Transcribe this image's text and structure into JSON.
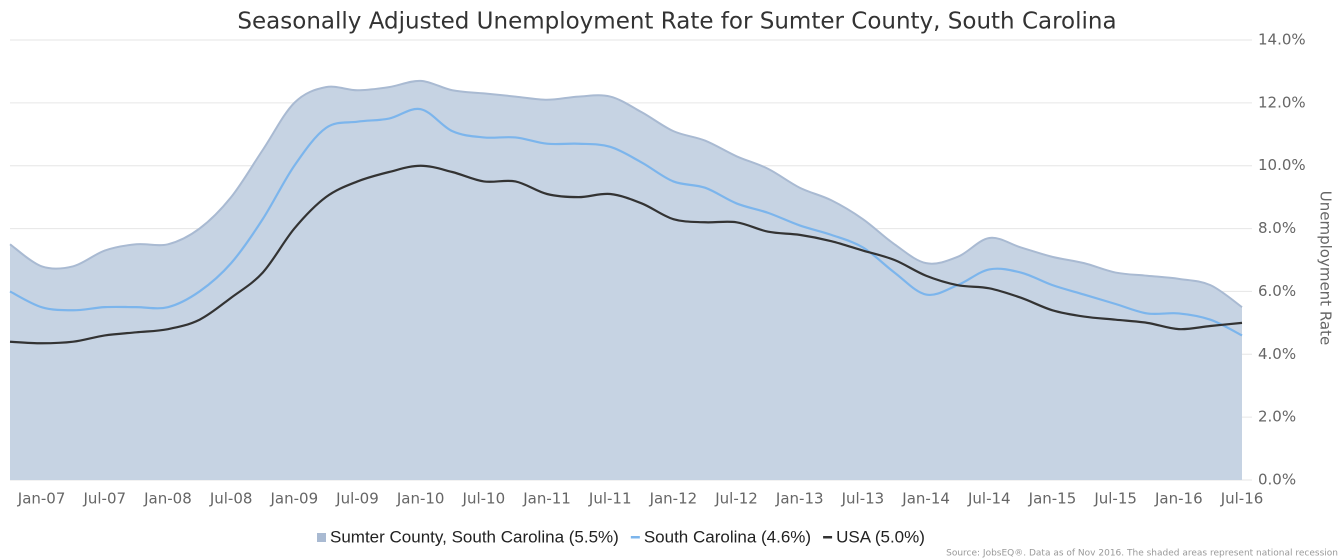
{
  "chart_data": {
    "type": "line",
    "title": "Seasonally Adjusted Unemployment Rate for Sumter County, South Carolina",
    "y_axis_label": "Unemployment Rate",
    "note": "Source: JobsEQ®. Data as of Nov 2016. The shaded areas represent national recession",
    "categories": [
      null,
      "Jan-07",
      null,
      "Jul-07",
      null,
      "Jan-08",
      null,
      "Jul-08",
      null,
      "Jan-09",
      null,
      "Jul-09",
      null,
      "Jan-10",
      null,
      "Jul-10",
      null,
      "Jan-11",
      null,
      "Jul-11",
      null,
      "Jan-12",
      null,
      "Jul-12",
      null,
      "Jan-13",
      null,
      "Jul-13",
      null,
      "Jan-14",
      null,
      "Jul-14",
      null,
      "Jan-15",
      null,
      "Jul-15",
      null,
      "Jan-16",
      null,
      "Jul-16"
    ],
    "series": [
      {
        "name": "Sumter County, South Carolina (5.5%)",
        "kind": "area",
        "color": "#c6d3e3",
        "values": [
          7.5,
          6.8,
          6.8,
          7.3,
          7.5,
          7.5,
          8.0,
          9.0,
          10.5,
          12.0,
          12.5,
          12.4,
          12.5,
          12.7,
          12.4,
          12.3,
          12.2,
          12.1,
          12.2,
          12.2,
          11.7,
          11.1,
          10.8,
          10.3,
          9.9,
          9.3,
          8.9,
          8.3,
          7.5,
          6.9,
          7.1,
          7.7,
          7.4,
          7.1,
          6.9,
          6.6,
          6.5,
          6.4,
          6.2,
          5.5
        ]
      },
      {
        "name": "South Carolina (4.6%)",
        "kind": "line",
        "color": "#7cb5ec",
        "values": [
          6.0,
          5.5,
          5.4,
          5.5,
          5.5,
          5.5,
          6.0,
          6.9,
          8.3,
          10.0,
          11.2,
          11.4,
          11.5,
          11.8,
          11.1,
          10.9,
          10.9,
          10.7,
          10.7,
          10.6,
          10.1,
          9.5,
          9.3,
          8.8,
          8.5,
          8.1,
          7.8,
          7.4,
          6.6,
          5.9,
          6.2,
          6.7,
          6.6,
          6.2,
          5.9,
          5.6,
          5.3,
          5.3,
          5.1,
          4.6
        ]
      },
      {
        "name": "USA (5.0%)",
        "kind": "line",
        "color": "#333333",
        "values": [
          4.4,
          4.35,
          4.4,
          4.6,
          4.7,
          4.8,
          5.1,
          5.8,
          6.6,
          8.0,
          9.0,
          9.5,
          9.8,
          10.0,
          9.8,
          9.5,
          9.5,
          9.1,
          9.0,
          9.1,
          8.8,
          8.3,
          8.2,
          8.2,
          7.9,
          7.8,
          7.6,
          7.3,
          7.0,
          6.5,
          6.2,
          6.1,
          5.8,
          5.4,
          5.2,
          5.1,
          5.0,
          4.8,
          4.9,
          5.0
        ]
      }
    ],
    "ylim": [
      0,
      14
    ],
    "yticks": [
      {
        "value": 0,
        "label": "0.0%"
      },
      {
        "value": 2,
        "label": "2.0%"
      },
      {
        "value": 4,
        "label": "4.0%"
      },
      {
        "value": 6,
        "label": "6.0%"
      },
      {
        "value": 8,
        "label": "8.0%"
      },
      {
        "value": 10,
        "label": "10.0%"
      },
      {
        "value": 12,
        "label": "12.0%"
      },
      {
        "value": 14,
        "label": "14.0%"
      }
    ],
    "grid": true
  }
}
